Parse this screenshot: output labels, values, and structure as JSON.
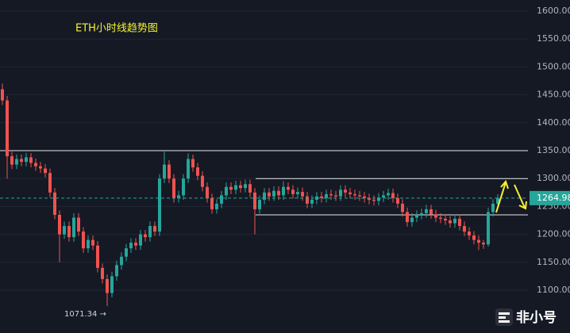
{
  "chart_data": {
    "type": "candlestick",
    "title": "ETH小时线趋势图",
    "open": [
      1460,
      1440,
      1340,
      1325,
      1335,
      1330,
      1338,
      1328,
      1322,
      1318,
      1310,
      1275,
      1235,
      1200,
      1215,
      1195,
      1230,
      1205,
      1175,
      1190,
      1180,
      1140,
      1120,
      1095,
      1125,
      1145,
      1160,
      1175,
      1185,
      1180,
      1200,
      1195,
      1215,
      1205,
      1300,
      1325,
      1300,
      1265,
      1270,
      1300,
      1335,
      1320,
      1305,
      1285,
      1265,
      1245,
      1255,
      1270,
      1285,
      1280,
      1288,
      1283,
      1290,
      1275,
      1245,
      1262,
      1275,
      1268,
      1278,
      1270,
      1285,
      1280,
      1272,
      1276,
      1268,
      1255,
      1262,
      1268,
      1265,
      1272,
      1270,
      1268,
      1280,
      1275,
      1272,
      1270,
      1268,
      1265,
      1262,
      1260,
      1266,
      1270,
      1274,
      1265,
      1255,
      1240,
      1222,
      1230,
      1235,
      1238,
      1245,
      1236,
      1230,
      1228,
      1225,
      1220,
      1228,
      1215,
      1205,
      1198,
      1190,
      1185,
      1182,
      1240,
      1255
    ],
    "high": [
      1470,
      1448,
      1348,
      1343,
      1343,
      1346,
      1346,
      1336,
      1330,
      1326,
      1318,
      1283,
      1243,
      1223,
      1223,
      1238,
      1238,
      1213,
      1198,
      1198,
      1188,
      1148,
      1128,
      1133,
      1153,
      1168,
      1183,
      1193,
      1193,
      1208,
      1208,
      1223,
      1223,
      1308,
      1348,
      1333,
      1308,
      1278,
      1308,
      1345,
      1343,
      1328,
      1313,
      1293,
      1273,
      1263,
      1278,
      1293,
      1293,
      1296,
      1296,
      1298,
      1298,
      1283,
      1270,
      1283,
      1283,
      1286,
      1286,
      1295,
      1293,
      1288,
      1284,
      1284,
      1276,
      1270,
      1276,
      1276,
      1280,
      1280,
      1278,
      1288,
      1288,
      1283,
      1280,
      1278,
      1276,
      1273,
      1270,
      1274,
      1278,
      1282,
      1282,
      1273,
      1263,
      1248,
      1238,
      1243,
      1246,
      1253,
      1253,
      1244,
      1238,
      1236,
      1233,
      1236,
      1236,
      1223,
      1213,
      1206,
      1198,
      1190,
      1248,
      1263,
      1272
    ],
    "low": [
      1432,
      1300,
      1317,
      1317,
      1322,
      1322,
      1320,
      1314,
      1310,
      1302,
      1267,
      1227,
      1150,
      1192,
      1187,
      1187,
      1197,
      1167,
      1167,
      1172,
      1132,
      1112,
      1071.34,
      1087,
      1117,
      1137,
      1152,
      1167,
      1172,
      1172,
      1187,
      1187,
      1197,
      1197,
      1292,
      1292,
      1257,
      1257,
      1262,
      1292,
      1312,
      1297,
      1277,
      1257,
      1237,
      1237,
      1247,
      1262,
      1272,
      1272,
      1275,
      1275,
      1267,
      1200,
      1237,
      1254,
      1260,
      1260,
      1262,
      1262,
      1272,
      1264,
      1264,
      1260,
      1247,
      1247,
      1254,
      1257,
      1257,
      1262,
      1260,
      1260,
      1267,
      1264,
      1262,
      1260,
      1257,
      1254,
      1252,
      1252,
      1258,
      1262,
      1257,
      1247,
      1232,
      1214,
      1214,
      1222,
      1227,
      1230,
      1228,
      1222,
      1220,
      1217,
      1212,
      1212,
      1207,
      1197,
      1190,
      1182,
      1172,
      1174,
      1178,
      1232,
      1247
    ],
    "close": [
      1440,
      1340,
      1325,
      1335,
      1330,
      1338,
      1328,
      1322,
      1318,
      1310,
      1275,
      1235,
      1200,
      1215,
      1195,
      1230,
      1205,
      1175,
      1190,
      1180,
      1140,
      1120,
      1095,
      1125,
      1145,
      1160,
      1175,
      1185,
      1180,
      1200,
      1195,
      1215,
      1205,
      1300,
      1325,
      1300,
      1265,
      1270,
      1300,
      1335,
      1320,
      1305,
      1285,
      1265,
      1245,
      1255,
      1270,
      1285,
      1280,
      1288,
      1283,
      1290,
      1275,
      1245,
      1262,
      1275,
      1268,
      1278,
      1270,
      1285,
      1280,
      1272,
      1276,
      1268,
      1255,
      1262,
      1268,
      1265,
      1272,
      1270,
      1268,
      1280,
      1275,
      1272,
      1270,
      1268,
      1265,
      1262,
      1260,
      1266,
      1270,
      1274,
      1265,
      1255,
      1240,
      1222,
      1230,
      1235,
      1238,
      1245,
      1236,
      1230,
      1228,
      1225,
      1220,
      1228,
      1215,
      1205,
      1198,
      1190,
      1185,
      1182,
      1240,
      1255,
      1264.98
    ],
    "up_color": "#26a69a",
    "down_color": "#ef5350",
    "ylim": [
      1023.3,
      1619.9
    ],
    "yticks": [
      {
        "value": 1100,
        "label": "1100.00"
      },
      {
        "value": 1150,
        "label": "1150.00"
      },
      {
        "value": 1200,
        "label": "1200.00"
      },
      {
        "value": 1250,
        "label": "1250.00"
      },
      {
        "value": 1300,
        "label": "1300.00"
      },
      {
        "value": 1350,
        "label": "1350.00"
      },
      {
        "value": 1400,
        "label": "1400.00"
      },
      {
        "value": 1450,
        "label": "1450.00"
      },
      {
        "value": 1500,
        "label": "1500.00"
      },
      {
        "value": 1550,
        "label": "1550.00"
      },
      {
        "value": 1600,
        "label": "1600.00"
      }
    ],
    "grid": true,
    "levels": [
      1350,
      1300,
      1235
    ],
    "annotations": [
      {
        "text": "1071.34 →",
        "value": 1071.34
      }
    ],
    "watermark": "非小号"
  }
}
